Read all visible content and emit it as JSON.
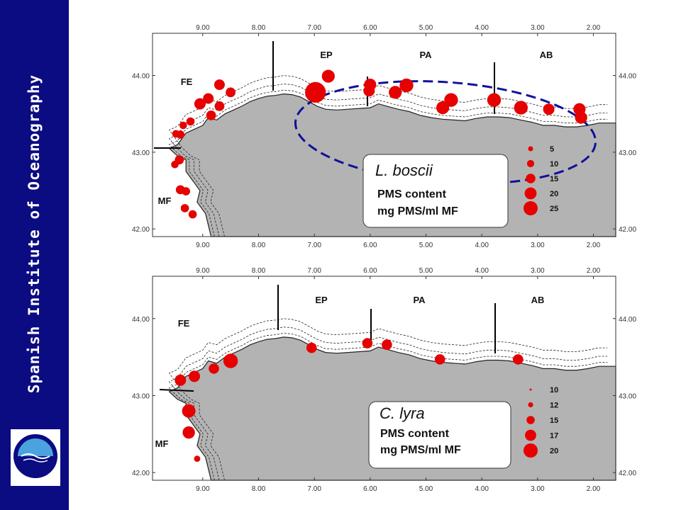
{
  "sidebar": {
    "title": "Spanish Institute of Oceanography"
  },
  "logo": {
    "name": "ieo-logo-icon"
  },
  "colors": {
    "sidebar": "#0b0b82",
    "land": "#b3b3b3",
    "dot": "#e60000",
    "ellipse": "#10109a"
  },
  "maps": [
    {
      "x_ticks": [
        "9.00",
        "8.00",
        "7.00",
        "6.00",
        "5.00",
        "4.00",
        "3.00",
        "2.00"
      ],
      "x_tick_values": [
        -9,
        -8,
        -7,
        -6,
        -5,
        -4,
        -3,
        -2
      ],
      "y_ticks": [
        "44.00",
        "43.00",
        "42.00"
      ],
      "y_tick_values": [
        44,
        43,
        42
      ],
      "regions": [
        "EP",
        "PA",
        "AB",
        "FE",
        "MF"
      ],
      "species": "L. boscii",
      "legend_line1": "PMS content",
      "legend_line2": "mg PMS/ml MF",
      "size_labels": [
        "5",
        "10",
        "15",
        "20",
        "25"
      ],
      "size_values": [
        5,
        10,
        15,
        20,
        25
      ],
      "points": [
        {
          "lon": -9.48,
          "lat": 43.24,
          "v": 5
        },
        {
          "lon": -9.4,
          "lat": 43.23,
          "v": 6
        },
        {
          "lon": -9.35,
          "lat": 43.35,
          "v": 5
        },
        {
          "lon": -9.22,
          "lat": 43.4,
          "v": 6
        },
        {
          "lon": -9.05,
          "lat": 43.63,
          "v": 10
        },
        {
          "lon": -8.9,
          "lat": 43.7,
          "v": 9
        },
        {
          "lon": -8.85,
          "lat": 43.48,
          "v": 8
        },
        {
          "lon": -8.7,
          "lat": 43.6,
          "v": 8
        },
        {
          "lon": -8.7,
          "lat": 43.88,
          "v": 9
        },
        {
          "lon": -8.5,
          "lat": 43.78,
          "v": 8
        },
        {
          "lon": -9.5,
          "lat": 42.84,
          "v": 5
        },
        {
          "lon": -9.42,
          "lat": 42.9,
          "v": 7
        },
        {
          "lon": -9.4,
          "lat": 42.51,
          "v": 7
        },
        {
          "lon": -9.3,
          "lat": 42.49,
          "v": 6
        },
        {
          "lon": -9.32,
          "lat": 42.27,
          "v": 6
        },
        {
          "lon": -9.18,
          "lat": 42.19,
          "v": 6
        },
        {
          "lon": -6.98,
          "lat": 43.78,
          "v": 22
        },
        {
          "lon": -6.75,
          "lat": 43.99,
          "v": 12
        },
        {
          "lon": -6.0,
          "lat": 43.88,
          "v": 11
        },
        {
          "lon": -6.02,
          "lat": 43.8,
          "v": 10
        },
        {
          "lon": -5.55,
          "lat": 43.78,
          "v": 12
        },
        {
          "lon": -5.35,
          "lat": 43.87,
          "v": 13
        },
        {
          "lon": -4.7,
          "lat": 43.58,
          "v": 12
        },
        {
          "lon": -4.55,
          "lat": 43.68,
          "v": 13
        },
        {
          "lon": -3.78,
          "lat": 43.68,
          "v": 13
        },
        {
          "lon": -3.3,
          "lat": 43.58,
          "v": 13
        },
        {
          "lon": -2.8,
          "lat": 43.56,
          "v": 10
        },
        {
          "lon": -2.25,
          "lat": 43.56,
          "v": 11
        },
        {
          "lon": -2.22,
          "lat": 43.45,
          "v": 11
        }
      ]
    },
    {
      "x_ticks": [
        "9.00",
        "8.00",
        "7.00",
        "6.00",
        "5.00",
        "4.00",
        "3.00",
        "2.00"
      ],
      "x_tick_values": [
        -9,
        -8,
        -7,
        -6,
        -5,
        -4,
        -3,
        -2
      ],
      "y_ticks": [
        "44.00",
        "43.00",
        "42.00"
      ],
      "y_tick_values": [
        44,
        43,
        42
      ],
      "regions": [
        "EP",
        "PA",
        "AB",
        "FE",
        "MF"
      ],
      "species": "C. lyra",
      "legend_line1": "PMS content",
      "legend_line2": "mg PMS/ml MF",
      "size_labels": [
        "10",
        "12",
        "15",
        "17",
        "20"
      ],
      "size_values": [
        10,
        12,
        15,
        17,
        20
      ],
      "points": [
        {
          "lon": -9.4,
          "lat": 43.2,
          "v": 16
        },
        {
          "lon": -9.15,
          "lat": 43.25,
          "v": 16
        },
        {
          "lon": -8.8,
          "lat": 43.35,
          "v": 15
        },
        {
          "lon": -8.5,
          "lat": 43.45,
          "v": 19
        },
        {
          "lon": -9.25,
          "lat": 42.8,
          "v": 18
        },
        {
          "lon": -9.25,
          "lat": 42.52,
          "v": 17
        },
        {
          "lon": -9.1,
          "lat": 42.18,
          "v": 11
        },
        {
          "lon": -7.05,
          "lat": 43.62,
          "v": 15
        },
        {
          "lon": -6.05,
          "lat": 43.68,
          "v": 15
        },
        {
          "lon": -5.7,
          "lat": 43.66,
          "v": 15
        },
        {
          "lon": -4.75,
          "lat": 43.47,
          "v": 15
        },
        {
          "lon": -3.35,
          "lat": 43.47,
          "v": 15
        }
      ]
    }
  ]
}
